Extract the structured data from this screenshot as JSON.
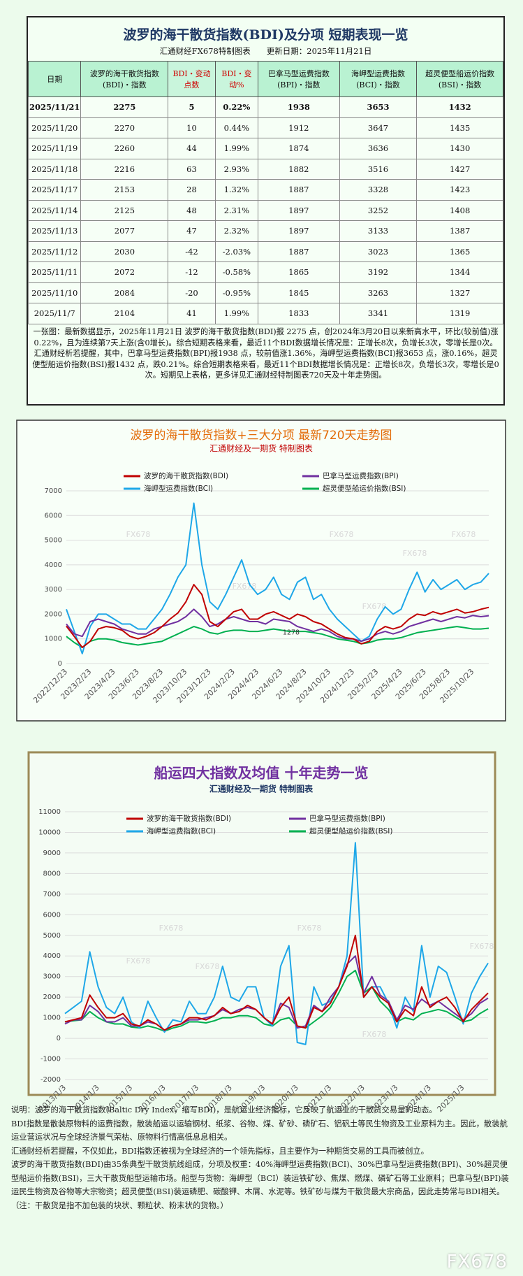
{
  "header": {
    "title": "波罗的海干散货指数(BDI)及分项 短期表现一览",
    "subtitle": "汇通财经FX678特制图表　　更新日期：2025年11月21日"
  },
  "table": {
    "columns": [
      "日期",
      "波罗的海干散货指数(BDI)・指数",
      "BDI・变动点数",
      "BDI・变动%",
      "巴拿马型运费指数(BPI)・指数",
      "海岬型运费指数(BCI)・指数",
      "超灵便型船运价指数(BSI)・指数"
    ],
    "rows": [
      [
        "2025/11/21",
        "2275",
        "5",
        "0.22%",
        "1938",
        "3653",
        "1432"
      ],
      [
        "2025/11/20",
        "2270",
        "10",
        "0.44%",
        "1912",
        "3647",
        "1435"
      ],
      [
        "2025/11/19",
        "2260",
        "44",
        "1.99%",
        "1874",
        "3636",
        "1430"
      ],
      [
        "2025/11/18",
        "2216",
        "63",
        "2.93%",
        "1882",
        "3516",
        "1427"
      ],
      [
        "2025/11/17",
        "2153",
        "28",
        "1.32%",
        "1887",
        "3328",
        "1423"
      ],
      [
        "2025/11/14",
        "2125",
        "48",
        "2.31%",
        "1897",
        "3252",
        "1408"
      ],
      [
        "2025/11/13",
        "2077",
        "47",
        "2.32%",
        "1897",
        "3133",
        "1387"
      ],
      [
        "2025/11/12",
        "2030",
        "-42",
        "-2.03%",
        "1887",
        "3023",
        "1365"
      ],
      [
        "2025/11/11",
        "2072",
        "-12",
        "-0.58%",
        "1865",
        "3192",
        "1344"
      ],
      [
        "2025/11/10",
        "2084",
        "-20",
        "-0.95%",
        "1845",
        "3263",
        "1327"
      ],
      [
        "2025/11/7",
        "2104",
        "41",
        "1.99%",
        "1833",
        "3341",
        "1319"
      ]
    ]
  },
  "summary": "一张图：最新数据显示，2025年11月21日 波罗的海干散货指数(BDI)报 2275 点，创2024年3月20日以来新高水平，环比(较前值)涨0.22%，且为连续第7天上涨(含0增长)。综合短期表格来看，最近11个BDI数据增长情况是：正增长8次，负增长3次，零增长是0次。汇通财经析若提醒，其中，巴拿马型运费指数(BPI)报1938 点，较前值涨1.36%，海岬型运费指数(BCI)报3653 点，涨0.16%，超灵便型船运价指数(BSI)报1432 点，跌0.21%。综合短期表格来看，最近11个BDI数据增长情况是：正增长8次，负增长3次，零增长是0次。短期见上表格，更多详见汇通财经特制图表720天及十年走势图。",
  "chart_data": [
    {
      "type": "line",
      "title": "波罗的海干散货指数+三大分项 最新720天走势图",
      "subtitle": "汇通财经及一期货 特制图表",
      "watermark": "FX678",
      "annotations": [
        "1278"
      ],
      "grid": true,
      "ylim": [
        0,
        7000
      ],
      "yticks": [
        0,
        1000,
        2000,
        3000,
        4000,
        5000,
        6000,
        7000
      ],
      "categories": [
        "2022/12/23",
        null,
        null,
        "2023/2/23",
        null,
        null,
        "2023/4/23",
        null,
        null,
        "2023/6/23",
        null,
        null,
        "2023/8/23",
        null,
        null,
        "2023/10/23",
        null,
        null,
        "2023/12/23",
        null,
        null,
        "2024/2/23",
        null,
        null,
        "2024/4/23",
        null,
        null,
        "2024/6/23",
        null,
        null,
        "2024/8/23",
        null,
        null,
        "2024/10/23",
        null,
        null,
        "2024/12/23",
        null,
        null,
        "2025/2/23",
        null,
        null,
        "2025/4/23",
        null,
        null,
        "2025/6/23",
        null,
        null,
        "2025/8/23",
        null,
        null,
        "2025/10/23",
        null,
        null
      ],
      "series": [
        {
          "name": "波罗的海干散货指数(BDI)",
          "color": "#c00000",
          "values": [
            1515,
            1100,
            650,
            900,
            1400,
            1500,
            1450,
            1350,
            1100,
            1000,
            1100,
            1250,
            1500,
            1800,
            2050,
            2500,
            3200,
            2800,
            1700,
            1500,
            1800,
            2100,
            2200,
            1800,
            1800,
            2000,
            2100,
            1950,
            1800,
            2000,
            1900,
            1700,
            1600,
            1400,
            1200,
            1050,
            1000,
            800,
            900,
            1300,
            1500,
            1400,
            1500,
            1800,
            2000,
            1950,
            2100,
            2000,
            2100,
            2200,
            2050,
            2100,
            2200,
            2275
          ]
        },
        {
          "name": "巴拿马型运费指数(BPI)",
          "color": "#7030a0",
          "values": [
            1600,
            1200,
            1100,
            1700,
            1800,
            1700,
            1600,
            1400,
            1300,
            1200,
            1200,
            1400,
            1500,
            1600,
            1700,
            1900,
            2200,
            1900,
            1500,
            1600,
            1800,
            1900,
            1800,
            1700,
            1700,
            1600,
            1800,
            1750,
            1700,
            1500,
            1400,
            1300,
            1400,
            1300,
            1100,
            1000,
            1000,
            900,
            1000,
            1200,
            1300,
            1200,
            1300,
            1500,
            1600,
            1700,
            1800,
            1700,
            1800,
            1900,
            1850,
            1950,
            1900,
            1938
          ]
        },
        {
          "name": "海岬型运费指数(BCI)",
          "color": "#1ea7e8",
          "values": [
            2200,
            1300,
            400,
            1500,
            2000,
            2000,
            1800,
            1600,
            1600,
            1400,
            1400,
            1800,
            2200,
            2800,
            3500,
            4000,
            6500,
            4000,
            2500,
            2200,
            2800,
            3500,
            4200,
            3200,
            2800,
            3000,
            3500,
            2800,
            2600,
            3300,
            3500,
            2600,
            2800,
            2200,
            1800,
            1500,
            1200,
            900,
            1100,
            1800,
            2300,
            2000,
            2200,
            3000,
            3700,
            2900,
            3400,
            3000,
            3200,
            3400,
            3000,
            3200,
            3300,
            3653
          ]
        },
        {
          "name": "超灵便型船运价指数(BSI)",
          "color": "#00b050",
          "values": [
            1100,
            850,
            650,
            900,
            1000,
            1000,
            950,
            850,
            800,
            750,
            800,
            850,
            900,
            1050,
            1200,
            1350,
            1500,
            1400,
            1250,
            1200,
            1300,
            1350,
            1350,
            1300,
            1300,
            1350,
            1400,
            1350,
            1300,
            1300,
            1300,
            1250,
            1200,
            1100,
            1000,
            950,
            900,
            800,
            850,
            950,
            1000,
            1000,
            1050,
            1150,
            1250,
            1300,
            1350,
            1400,
            1450,
            1500,
            1450,
            1400,
            1400,
            1432
          ]
        }
      ]
    },
    {
      "type": "line",
      "title": "船运四大指数及均值 十年走势一览",
      "subtitle": "汇通财经及一期货 特制图表",
      "watermark": "FX678",
      "grid": true,
      "ylim": [
        -2000,
        11000
      ],
      "yticks": [
        -2000,
        -1000,
        0,
        1000,
        2000,
        3000,
        4000,
        5000,
        6000,
        7000,
        8000,
        9000,
        10000,
        11000
      ],
      "categories": [
        "2013/1/3",
        null,
        null,
        null,
        "2014/1/3",
        null,
        null,
        null,
        "2015/1/3",
        null,
        null,
        null,
        "2016/1/3",
        null,
        null,
        null,
        "2017/1/3",
        null,
        null,
        null,
        "2018/1/3",
        null,
        null,
        null,
        "2019/1/3",
        null,
        null,
        null,
        "2020/1/3",
        null,
        null,
        null,
        "2021/1/3",
        null,
        null,
        null,
        "2022/1/3",
        null,
        null,
        null,
        "2023/1/3",
        null,
        null,
        null,
        "2024/1/3",
        null,
        null,
        null,
        "2025/1/3",
        null,
        null,
        null
      ],
      "series": [
        {
          "name": "波罗的海干散货指数(BDI)",
          "color": "#c00000",
          "values": [
            800,
            900,
            1000,
            2100,
            1500,
            1000,
            1000,
            1200,
            700,
            600,
            900,
            700,
            400,
            600,
            700,
            1000,
            1000,
            900,
            1100,
            1500,
            1200,
            1300,
            1600,
            1400,
            1000,
            700,
            1500,
            2000,
            600,
            500,
            1500,
            1300,
            1700,
            2500,
            3500,
            5000,
            2000,
            2500,
            2000,
            1700,
            800,
            1400,
            1100,
            2500,
            1500,
            1800,
            2000,
            1500,
            800,
            1400,
            1800,
            2200
          ]
        },
        {
          "name": "巴拿马型运费指数(BPI)",
          "color": "#7030a0",
          "values": [
            700,
            900,
            900,
            1600,
            1300,
            800,
            800,
            1000,
            600,
            600,
            800,
            700,
            400,
            600,
            700,
            900,
            900,
            1000,
            1100,
            1400,
            1200,
            1400,
            1500,
            1400,
            1000,
            700,
            1700,
            1500,
            500,
            600,
            1600,
            1300,
            2000,
            2500,
            3600,
            4000,
            2200,
            3000,
            2100,
            1800,
            900,
            1600,
            1400,
            1900,
            1600,
            1800,
            1500,
            1200,
            900,
            1200,
            1700,
            1950
          ]
        },
        {
          "name": "海岬型运费指数(BCI)",
          "color": "#1ea7e8",
          "values": [
            1200,
            1500,
            1800,
            4200,
            2500,
            1500,
            1200,
            2000,
            800,
            500,
            1800,
            1000,
            300,
            900,
            800,
            1800,
            1200,
            1200,
            2000,
            3500,
            2000,
            1800,
            2500,
            2500,
            1000,
            600,
            3500,
            4500,
            -200,
            -300,
            2500,
            1600,
            1800,
            2500,
            4000,
            9500,
            2000,
            2500,
            2500,
            1700,
            500,
            2000,
            1300,
            4500,
            2000,
            3500,
            3200,
            2000,
            700,
            2200,
            3000,
            3650
          ]
        },
        {
          "name": "超灵便型船运价指数(BSI)",
          "color": "#00b050",
          "values": [
            800,
            850,
            900,
            1300,
            1000,
            800,
            700,
            700,
            550,
            500,
            600,
            500,
            350,
            500,
            600,
            800,
            800,
            750,
            850,
            1000,
            1000,
            1100,
            1100,
            1000,
            700,
            600,
            900,
            1000,
            600,
            500,
            800,
            1100,
            1500,
            2200,
            3000,
            3300,
            2200,
            2500,
            1800,
            1400,
            800,
            1000,
            900,
            1200,
            1300,
            1400,
            1300,
            1050,
            800,
            900,
            1200,
            1432
          ]
        }
      ]
    }
  ],
  "notes": [
    "说明：波罗的海干散货指数(Baltic Dry Index，缩写BDI)，是航运业经济指标，它反映了航运业的干散货交易量的动态。",
    "BDI指数是散装原物料的运费指数，散装船运以运输钢材、纸浆、谷物、煤、矿砂、磷矿石、铝矾土等民生物资及工业原料为主。因此，散装航运业营运状况与全球经济景气荣枯、原物料行情高低息息相关。",
    "汇通财经析若提醒，不仅如此，BDI指数还被视为全球经济的一个领先指标，且主要作为一种期货交易的工具而被创立。",
    "波罗的海干散货指数(BDI)由35条典型干散货航线组成，分项及权重：40%海岬型运费指数(BCI)、30%巴拿马型运费指数(BPI)、30%超灵便型船运价指数(BSI)，三大干散货船型运输市场。船型与货物：海岬型（BCI）装运铁矿砂、焦煤、燃煤、磷矿石等工业原料；巴拿马型(BPI)装运民生物资及谷物等大宗物资；超灵便型(BSI)装运磷肥、碳酸钾、木屑、水泥等。铁矿砂与煤为干散货最大宗商品，因此走势常与BDI相关。（注：干散货是指不加包装的块状、颗粒状、粉末状的货物。）"
  ],
  "footer": "FX678"
}
